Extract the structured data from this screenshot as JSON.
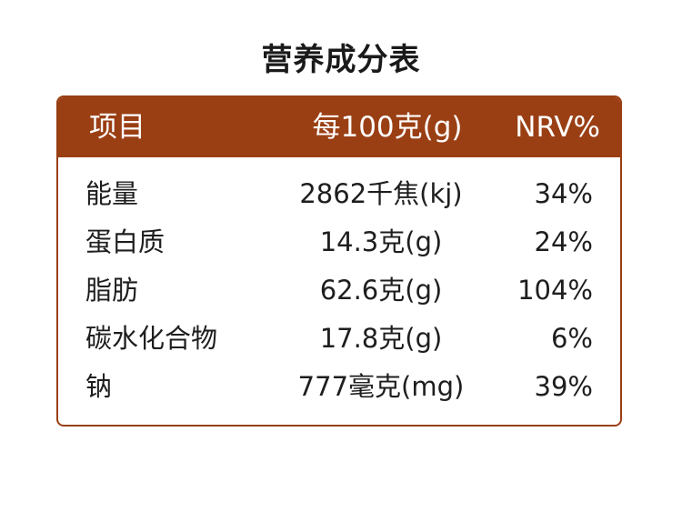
{
  "title": "营养成分表",
  "header": {
    "item": "项目",
    "per100": "每100克(g)",
    "nrv": "NRV%"
  },
  "rows": [
    {
      "name": "能量",
      "value": "2862千焦(kj)",
      "nrv": "34%"
    },
    {
      "name": "蛋白质",
      "value": "14.3克(g)",
      "nrv": "24%"
    },
    {
      "name": "脂肪",
      "value": "62.6克(g)",
      "nrv": "104%"
    },
    {
      "name": "碳水化合物",
      "value": "17.8克(g)",
      "nrv": "6%"
    },
    {
      "name": "钠",
      "value": "777毫克(mg)",
      "nrv": "39%"
    }
  ],
  "colors": {
    "accent": "#9a3f14"
  }
}
